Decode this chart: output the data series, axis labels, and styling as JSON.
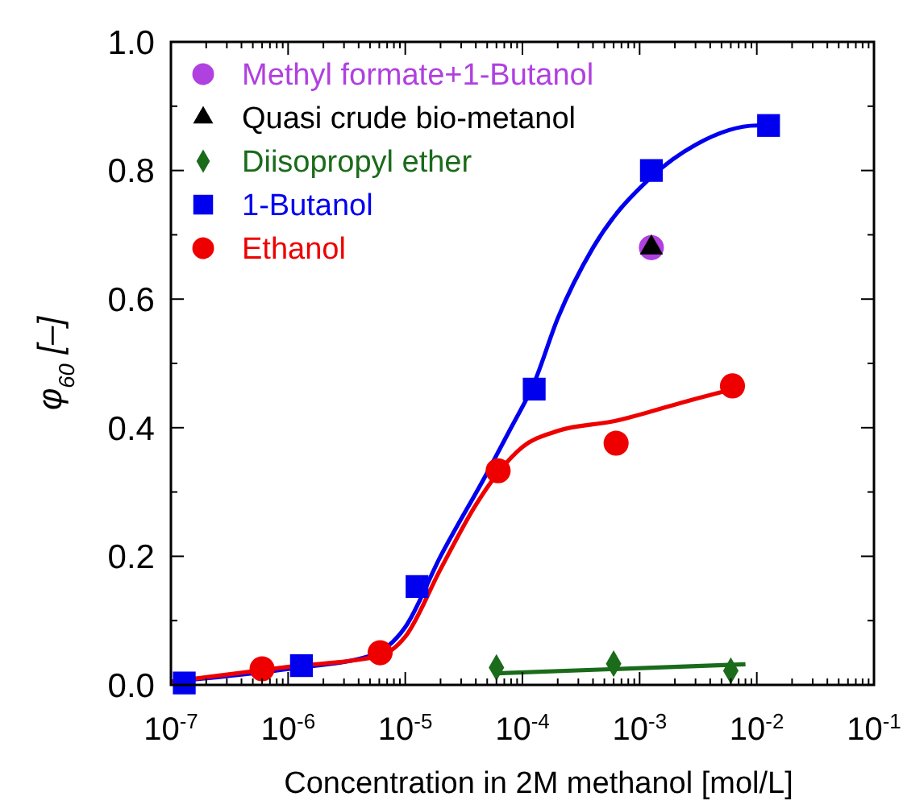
{
  "chart_data": {
    "type": "scatter",
    "xlabel": "Concentration in 2M methanol [mol/L]",
    "ylabel": "φ$_{60}$ [–]",
    "log": "x",
    "xlim": [
      1e-07,
      0.1
    ],
    "xticks": [
      {
        "value": 1e-07,
        "label": "10$^{-7}$"
      },
      {
        "value": 1e-06,
        "label": "10$^{-6}$"
      },
      {
        "value": 1e-05,
        "label": "10$^{-5}$"
      },
      {
        "value": 0.0001,
        "label": "10$^{-4}$"
      },
      {
        "value": 0.001,
        "label": "10$^{-3}$"
      },
      {
        "value": 0.01,
        "label": "10$^{-2}$"
      },
      {
        "value": 0.1,
        "label": "10$^{-1}$"
      }
    ],
    "ylim": [
      0,
      1
    ],
    "yticks": [
      {
        "value": 0,
        "label": "0.0"
      },
      {
        "value": 0.1,
        "label": null
      },
      {
        "value": 0.2,
        "label": "0.2"
      },
      {
        "value": 0.3,
        "label": null
      },
      {
        "value": 0.4,
        "label": "0.4"
      },
      {
        "value": 0.5,
        "label": null
      },
      {
        "value": 0.6,
        "label": "0.6"
      },
      {
        "value": 0.7,
        "label": null
      },
      {
        "value": 0.8,
        "label": "0.8"
      },
      {
        "value": 0.9,
        "label": null
      },
      {
        "value": 1,
        "label": "1.0"
      }
    ],
    "grid": false,
    "legend": "top left",
    "series": [
      {
        "type": "line",
        "marker": "none",
        "color": "#0000ee",
        "x": [
          1e-07,
          1e-06,
          5e-06,
          1e-05,
          2e-05,
          5e-05,
          8e-05,
          0.000126,
          0.0002,
          0.0004,
          0.00126,
          0.003,
          0.01,
          0.013
        ],
        "values": [
          0.005,
          0.025,
          0.045,
          0.09,
          0.2,
          0.33,
          0.4,
          0.47,
          0.57,
          0.68,
          0.79,
          0.84,
          0.87,
          0.87
        ]
      },
      {
        "type": "line",
        "marker": "none",
        "color": "#ee0000",
        "x": [
          1e-07,
          1e-06,
          6e-06,
          1e-05,
          2e-05,
          4e-05,
          6.2e-05,
          0.0001,
          0.0002,
          0.0006,
          0.003,
          0.0062
        ],
        "values": [
          0.005,
          0.028,
          0.045,
          0.075,
          0.18,
          0.28,
          0.33,
          0.37,
          0.395,
          0.41,
          0.445,
          0.46
        ]
      },
      {
        "type": "line",
        "marker": "none",
        "color": "#1a6b1a",
        "x": [
          6e-05,
          0.008
        ],
        "values": [
          0.018,
          0.032
        ]
      },
      {
        "name": "Methyl formate+1-Butanol",
        "marker": "circle",
        "color": "#b040e0",
        "x": [
          0.00126
        ],
        "values": [
          0.68
        ]
      },
      {
        "name": "Quasi crude bio-metanol",
        "marker": "triangle",
        "color": "#000000",
        "x": [
          0.00126
        ],
        "values": [
          0.68
        ]
      },
      {
        "name": "Diisopropyl ether",
        "marker": "diamond",
        "color": "#1a6b1a",
        "x": [
          6e-05,
          0.0006,
          0.006
        ],
        "values": [
          0.027,
          0.033,
          0.022
        ]
      },
      {
        "name": "1-Butanol",
        "marker": "square",
        "color": "#0000ee",
        "x": [
          1.3e-07,
          1.3e-06,
          1.26e-05,
          0.000126,
          0.00126,
          0.0126
        ],
        "values": [
          0.003,
          0.03,
          0.153,
          0.46,
          0.8,
          0.87
        ]
      },
      {
        "name": "Ethanol",
        "marker": "circle",
        "color": "#ee0000",
        "x": [
          6e-07,
          6.1e-06,
          6.2e-05,
          0.00063,
          0.0062
        ],
        "values": [
          0.025,
          0.05,
          0.333,
          0.376,
          0.465
        ]
      }
    ]
  }
}
